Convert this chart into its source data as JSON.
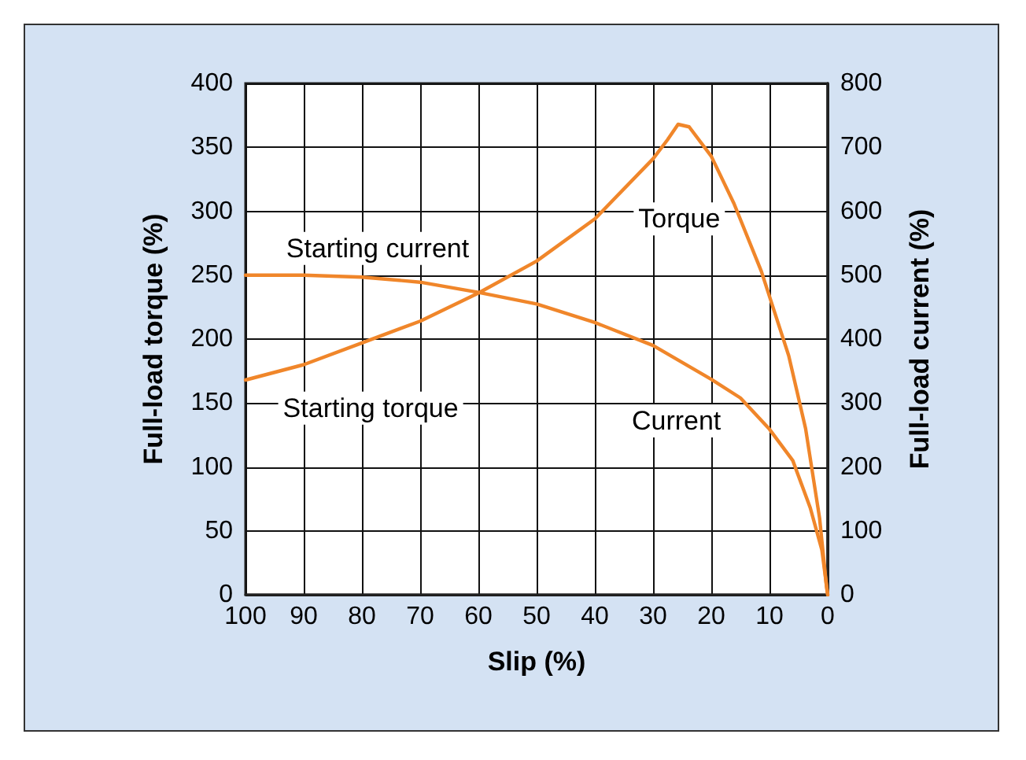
{
  "chart_data": {
    "type": "line",
    "xlabel": "Slip (%)",
    "ylabel": "Full-load torque (%)",
    "y2label": "Full-load current (%)",
    "xlim": [
      100,
      0
    ],
    "xticks": [
      100,
      90,
      80,
      70,
      60,
      50,
      40,
      30,
      20,
      10,
      0
    ],
    "ylim": [
      0,
      400
    ],
    "yticks": [
      0,
      50,
      100,
      150,
      200,
      250,
      300,
      350,
      400
    ],
    "y2lim": [
      0,
      800
    ],
    "y2ticks": [
      0,
      100,
      200,
      300,
      400,
      500,
      600,
      700,
      800
    ],
    "grid": true,
    "marker": "none",
    "line_style": "solid",
    "series": [
      {
        "color": "#f0862a",
        "x": [
          100,
          90,
          80,
          70,
          60,
          50,
          40,
          30,
          27.5,
          25.7,
          23.8,
          20,
          16.1,
          11.4,
          6.7,
          3.8,
          1.4,
          0.2,
          0
        ],
        "values": [
          168,
          180,
          197,
          214,
          236,
          261,
          294,
          341,
          356,
          368,
          366,
          343,
          306,
          253,
          187,
          130,
          60,
          6,
          0
        ]
      },
      {
        "color": "#f0862a",
        "axis": "y2",
        "x": [
          100,
          90,
          80,
          70,
          60,
          50,
          40,
          30,
          20,
          15,
          10,
          6,
          3,
          1,
          0
        ],
        "values": [
          500,
          500,
          497,
          489,
          473,
          455,
          426,
          390,
          337,
          308,
          259,
          210,
          136,
          70,
          0
        ]
      }
    ],
    "annotations": [
      "Starting current",
      "Starting torque",
      "Torque",
      "Current"
    ]
  }
}
